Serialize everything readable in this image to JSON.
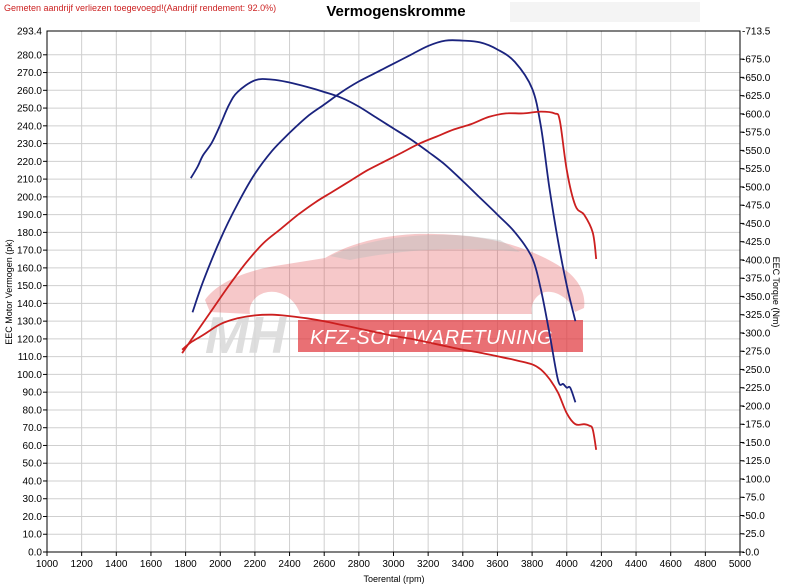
{
  "header": {
    "note": "Gemeten aandrijf verliezen toegevoegd!(Aandrijf rendement: 92.0%)",
    "title": "Vermogenskromme"
  },
  "watermark": {
    "brand_text": "KFZ-SOFTWARETUNING",
    "mh_text": "MH"
  },
  "colors": {
    "tuned": "#1a237e",
    "stock": "#cc1f1f",
    "watermark": "#e0393e"
  },
  "chart_data": {
    "type": "line",
    "xlabel": "Toerental (rpm)",
    "ylabel_left": "EEC Motor Vermogen (pk)",
    "ylabel_right": "EEC Torque (Nm)",
    "xlim": [
      1000,
      5000
    ],
    "ylim_left": [
      0,
      293.4
    ],
    "ylim_right": [
      0,
      713.5
    ],
    "x_ticks": [
      1000,
      1200,
      1400,
      1600,
      1800,
      2000,
      2200,
      2400,
      2600,
      2800,
      3000,
      3200,
      3400,
      3600,
      3800,
      4000,
      4200,
      4400,
      4600,
      4800,
      5000
    ],
    "left_ticks": [
      "0.0",
      "10.0",
      "20.0",
      "30.0",
      "40.0",
      "50.0",
      "60.0",
      "70.0",
      "80.0",
      "90.0",
      "100.0",
      "110.0",
      "120.0",
      "130.0",
      "140.0",
      "150.0",
      "160.0",
      "170.0",
      "180.0",
      "190.0",
      "200.0",
      "210.0",
      "220.0",
      "230.0",
      "240.0",
      "250.0",
      "260.0",
      "270.0",
      "280.0"
    ],
    "left_top_label": "293.4",
    "right_ticks": [
      "0.0",
      "25.0",
      "50.0",
      "75.0",
      "100.0",
      "125.0",
      "150.0",
      "175.0",
      "200.0",
      "225.0",
      "250.0",
      "275.0",
      "300.0",
      "325.0",
      "350.0",
      "375.0",
      "400.0",
      "425.0",
      "450.0",
      "475.0",
      "500.0",
      "525.0",
      "550.0",
      "575.0",
      "600.0",
      "625.0",
      "650.0",
      "675.0"
    ],
    "right_top_label": "713.5",
    "grid": true,
    "series": [
      {
        "axis": "left",
        "color": "#1a237e",
        "x": [
          1840,
          1900,
          2000,
          2100,
          2200,
          2300,
          2400,
          2500,
          2600,
          2700,
          2800,
          2900,
          3000,
          3100,
          3200,
          3300,
          3400,
          3500,
          3600,
          3700,
          3800,
          3850,
          3900,
          3950,
          4000,
          4050
        ],
        "y": [
          135,
          152,
          176,
          196,
          213,
          226,
          236,
          245,
          252,
          259,
          265,
          270,
          275,
          280,
          285,
          288,
          288,
          287,
          283,
          276,
          261,
          240,
          205,
          175,
          150,
          130
        ]
      },
      {
        "axis": "right",
        "color": "#1a237e",
        "x": [
          1830,
          1870,
          1900,
          1950,
          2000,
          2050,
          2100,
          2200,
          2300,
          2400,
          2500,
          2600,
          2700,
          2800,
          2900,
          3000,
          3100,
          3200,
          3300,
          3400,
          3500,
          3600,
          3700,
          3800,
          3850,
          3900,
          3950,
          3980,
          4000,
          4020,
          4050
        ],
        "y": [
          512,
          528,
          543,
          560,
          585,
          612,
          630,
          646,
          647,
          643,
          637,
          630,
          622,
          610,
          595,
          580,
          565,
          548,
          530,
          508,
          485,
          462,
          438,
          403,
          360,
          300,
          235,
          230,
          225,
          225,
          205
        ]
      },
      {
        "axis": "left",
        "color": "#cc1f1f",
        "x": [
          1780,
          1850,
          1950,
          2050,
          2150,
          2250,
          2350,
          2450,
          2550,
          2650,
          2750,
          2850,
          2950,
          3050,
          3150,
          3250,
          3350,
          3450,
          3550,
          3650,
          3750,
          3850,
          3930,
          3960,
          4000,
          4050,
          4100,
          4150,
          4170
        ],
        "y": [
          112,
          122,
          136,
          150,
          163,
          174,
          182,
          190,
          197,
          203,
          209,
          215,
          220,
          225,
          230,
          234,
          238,
          241,
          245,
          247,
          247,
          248,
          247,
          243,
          215,
          195,
          190,
          180,
          165
        ]
      },
      {
        "axis": "right",
        "color": "#cc1f1f",
        "x": [
          1780,
          1830,
          1900,
          2000,
          2100,
          2200,
          2300,
          2400,
          2500,
          2600,
          2700,
          2800,
          2900,
          3000,
          3100,
          3200,
          3300,
          3400,
          3500,
          3600,
          3700,
          3800,
          3850,
          3900,
          3950,
          4000,
          4050,
          4100,
          4130,
          4150,
          4170
        ],
        "y": [
          277,
          287,
          297,
          312,
          320,
          324,
          325,
          323,
          320,
          316,
          311,
          306,
          301,
          296,
          292,
          287,
          282,
          277,
          273,
          268,
          263,
          257,
          250,
          237,
          218,
          190,
          175,
          175,
          173,
          168,
          140
        ]
      }
    ]
  }
}
